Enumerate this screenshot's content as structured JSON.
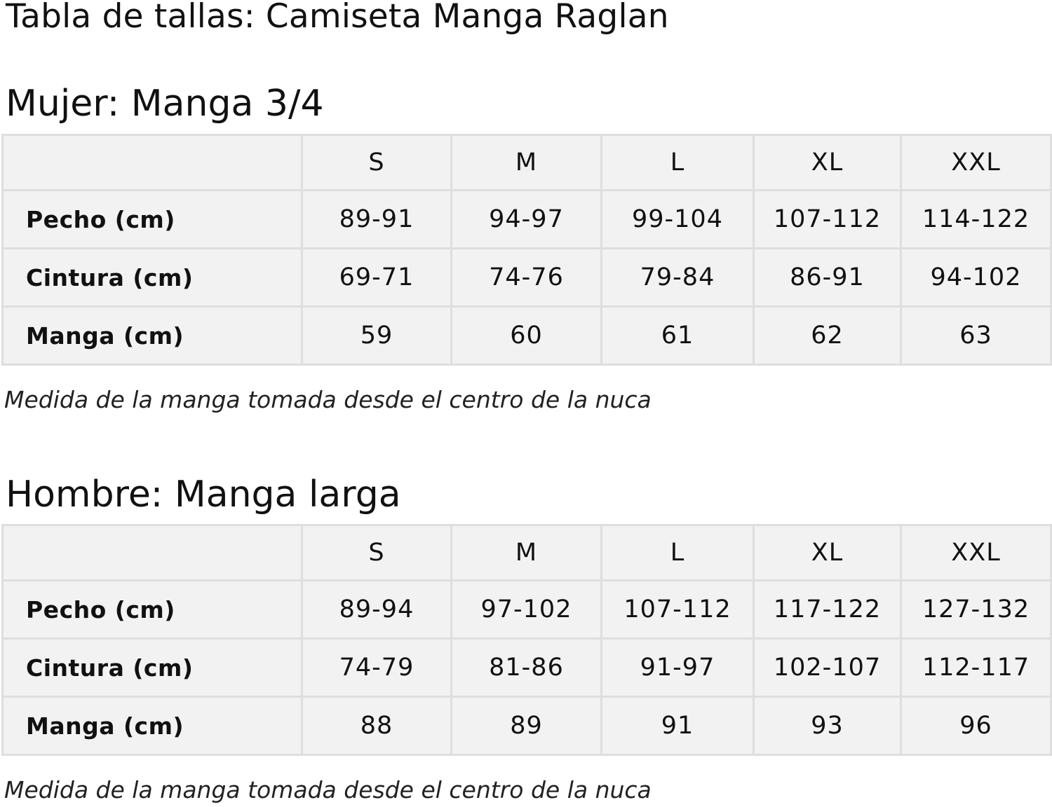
{
  "title": "Tabla de tallas: Camiseta Manga Raglan",
  "sections": [
    {
      "heading": "Mujer: Manga 3/4",
      "sizes": [
        "S",
        "M",
        "L",
        "XL",
        "XXL"
      ],
      "rows": [
        {
          "label": "Pecho (cm)",
          "values": [
            "89-91",
            "94-97",
            "99-104",
            "107-112",
            "114-122"
          ]
        },
        {
          "label": "Cintura (cm)",
          "values": [
            "69-71",
            "74-76",
            "79-84",
            "86-91",
            "94-102"
          ]
        },
        {
          "label": "Manga (cm)",
          "values": [
            "59",
            "60",
            "61",
            "62",
            "63"
          ]
        }
      ],
      "note": "Medida de la manga tomada desde el centro de la nuca"
    },
    {
      "heading": "Hombre: Manga larga",
      "sizes": [
        "S",
        "M",
        "L",
        "XL",
        "XXL"
      ],
      "rows": [
        {
          "label": "Pecho (cm)",
          "values": [
            "89-94",
            "97-102",
            "107-112",
            "117-122",
            "127-132"
          ]
        },
        {
          "label": "Cintura (cm)",
          "values": [
            "74-79",
            "81-86",
            "91-97",
            "102-107",
            "112-117"
          ]
        },
        {
          "label": "Manga (cm)",
          "values": [
            "88",
            "89",
            "91",
            "93",
            "96"
          ]
        }
      ],
      "note": "Medida de la manga tomada desde el centro de la nuca"
    }
  ]
}
